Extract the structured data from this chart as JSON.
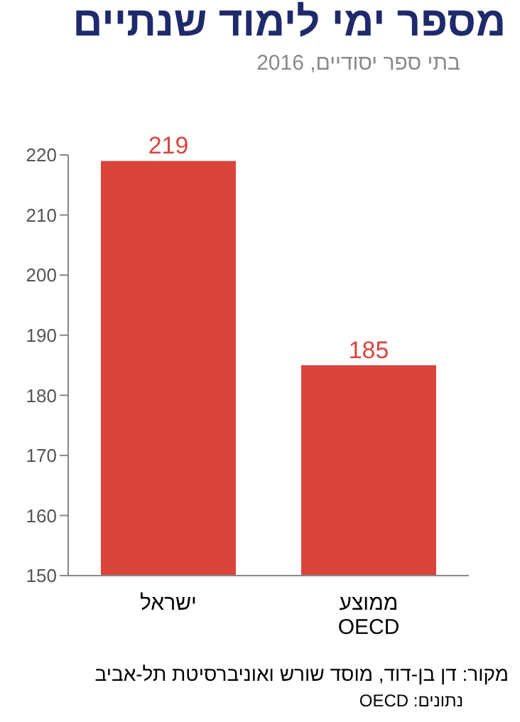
{
  "chart_data": {
    "type": "bar",
    "title": "מספר ימי לימוד שנתיים",
    "subtitle": "בתי ספר יסודיים, 2016",
    "categories": [
      "ישראל",
      "ממוצע OECD"
    ],
    "values": [
      219,
      185
    ],
    "color": "#d9453d",
    "ylim": [
      150,
      220
    ],
    "yticks": [
      150,
      160,
      170,
      180,
      190,
      200,
      210,
      220
    ],
    "grid": false,
    "data_labels": true,
    "annotations": [
      "מקור: דן בן-דוד, מוסד שורש ואוניברסיטת תל-אביב",
      "נתונים: OECD"
    ]
  }
}
